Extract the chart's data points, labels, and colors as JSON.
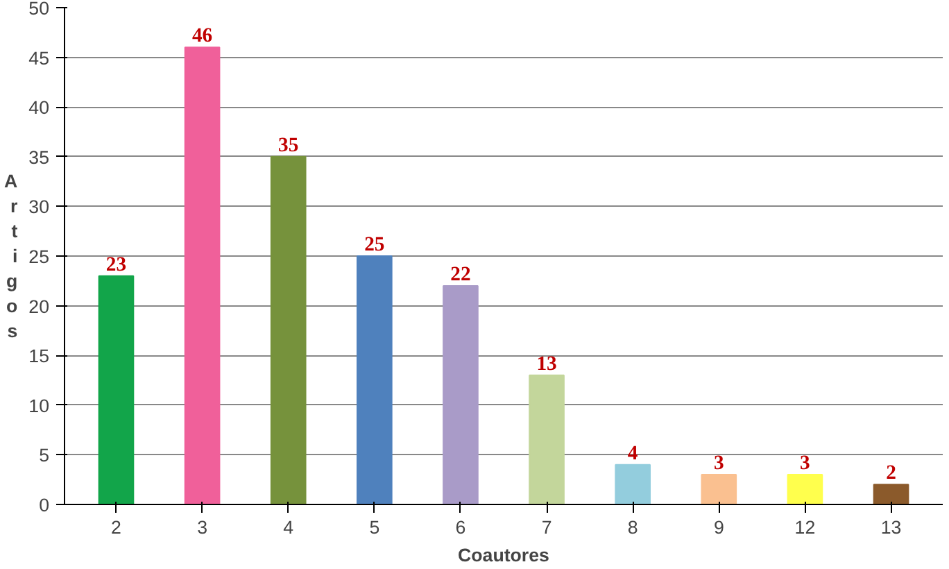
{
  "chart_data": {
    "type": "bar",
    "xlabel": "Coautores",
    "ylabel": "Artigos",
    "categories": [
      "2",
      "3",
      "4",
      "5",
      "6",
      "7",
      "8",
      "9",
      "12",
      "13"
    ],
    "values": [
      23,
      46,
      35,
      25,
      22,
      13,
      4,
      3,
      3,
      2
    ],
    "colors": [
      "#12a54a",
      "#f0609a",
      "#76923c",
      "#4f81bd",
      "#a99bc8",
      "#c3d69b",
      "#93cddd",
      "#fac090",
      "#ffff4d",
      "#8b5a2b"
    ],
    "ylim": [
      0,
      50
    ],
    "yticks": [
      0,
      5,
      10,
      15,
      20,
      25,
      30,
      35,
      40,
      45,
      50
    ],
    "grid": "y",
    "data_labels": true
  }
}
